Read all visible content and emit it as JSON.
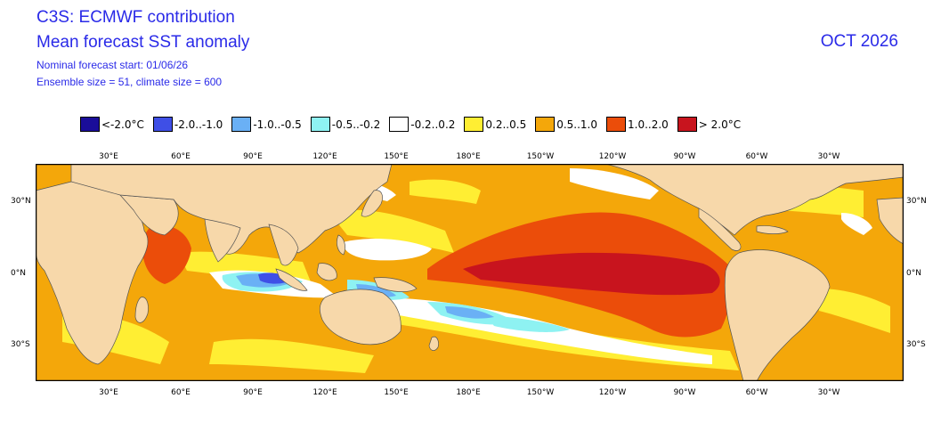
{
  "header": {
    "line1": "C3S: ECMWF contribution",
    "line2": "Mean forecast SST anomaly",
    "line3": "Nominal forecast start: 01/06/26",
    "line4": "Ensemble size = 51, climate size = 600",
    "month": "OCT 2026"
  },
  "legend": [
    {
      "label": "<-2.0°C",
      "color": "#1a0d99"
    },
    {
      "label": "-2.0..-1.0",
      "color": "#3f4fe6"
    },
    {
      "label": "-1.0..-0.5",
      "color": "#6ab0f5"
    },
    {
      "label": "-0.5..-0.2",
      "color": "#8ef2f2"
    },
    {
      "label": "-0.2..0.2",
      "color": "#ffffff"
    },
    {
      "label": "0.2..0.5",
      "color": "#ffee33"
    },
    {
      "label": "0.5..1.0",
      "color": "#f4a70a"
    },
    {
      "label": "1.0..2.0",
      "color": "#eb4d0a"
    },
    {
      "label": "> 2.0°C",
      "color": "#c8141e"
    }
  ],
  "x_ticks": [
    "30°E",
    "60°E",
    "90°E",
    "120°E",
    "150°E",
    "180°E",
    "150°W",
    "120°W",
    "90°W",
    "60°W",
    "30°W"
  ],
  "y_ticks": [
    "30°N",
    "0°N",
    "30°S"
  ],
  "colors": {
    "land": "#f7d8aa",
    "ocean_base": "#f4a70a",
    "coast": "#555555",
    "title_text": "#2a2ae8"
  }
}
